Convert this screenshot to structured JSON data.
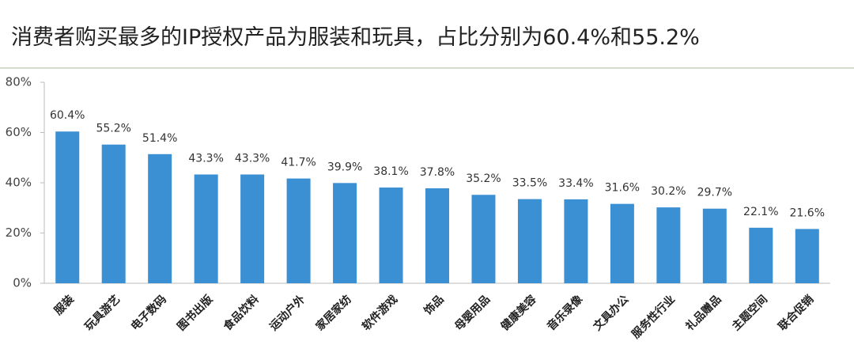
{
  "chart_data": {
    "type": "bar",
    "title": "消费者购买最多的IP授权产品为服装和玩具，占比分别为60.4%和55.2%",
    "categories": [
      "服装",
      "玩具游艺",
      "电子数码",
      "图书出版",
      "食品饮料",
      "运动户外",
      "家居家纺",
      "软件游戏",
      "饰品",
      "母婴用品",
      "健康美容",
      "音乐录像",
      "文具办公",
      "服务性行业",
      "礼品赠品",
      "主题空间",
      "联合促销"
    ],
    "values": [
      60.4,
      55.2,
      51.4,
      43.3,
      43.3,
      41.7,
      39.9,
      38.1,
      37.8,
      35.2,
      33.5,
      33.4,
      31.6,
      30.2,
      29.7,
      22.1,
      21.6
    ],
    "value_labels": [
      "60.4%",
      "55.2%",
      "51.4%",
      "43.3%",
      "43.3%",
      "41.7%",
      "39.9%",
      "38.1%",
      "37.8%",
      "35.2%",
      "33.5%",
      "33.4%",
      "31.6%",
      "30.2%",
      "29.7%",
      "22.1%",
      "21.6%"
    ],
    "color": "#3b8fd3",
    "ylim": [
      0,
      80
    ],
    "yticks": [
      {
        "value": 0,
        "label": "0%"
      },
      {
        "value": 20,
        "label": "20%"
      },
      {
        "value": 40,
        "label": "40%"
      },
      {
        "value": 60,
        "label": "60%"
      },
      {
        "value": 80,
        "label": "80%"
      }
    ],
    "grid": false
  }
}
